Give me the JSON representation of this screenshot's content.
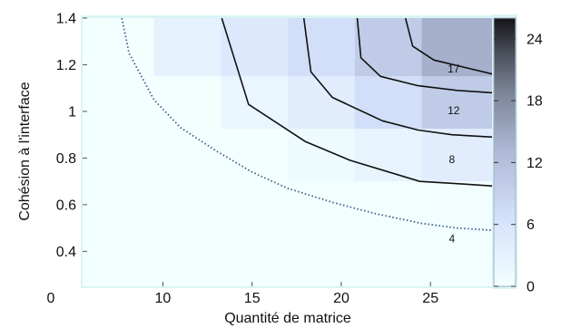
{
  "chart_data": [
    {
      "type": "heatmap",
      "title": "",
      "xlabel": "Quantité de matrice",
      "ylabel": "Cohésion à l'interface",
      "xlim": [
        5.5,
        28.5
      ],
      "ylim": [
        0.25,
        1.4
      ],
      "xticks": [
        10,
        15,
        20,
        25
      ],
      "yticks": [
        0.4,
        0.6,
        0.8,
        1,
        1.2,
        1.4
      ],
      "extra_y_tick_label": "0",
      "grid": false,
      "colormap": "white-lightblue-black",
      "cells": {
        "x_edges": [
          5.5,
          9.5,
          13.25,
          17,
          20.75,
          24.5,
          28.5
        ],
        "y_edges": [
          0.25,
          0.475,
          0.7,
          0.925,
          1.15,
          1.4
        ],
        "values": [
          [
            0,
            0,
            0,
            0,
            0,
            0
          ],
          [
            0,
            0,
            0,
            0,
            0,
            0.5
          ],
          [
            0,
            0,
            0,
            1,
            2.5,
            4
          ],
          [
            0,
            0,
            2,
            4,
            7,
            10
          ],
          [
            0,
            3,
            5,
            7,
            10,
            14
          ]
        ]
      },
      "contours": [
        {
          "level": "4",
          "x": [
            13.3,
            14.8,
            18,
            20.5,
            24.4,
            26.5,
            28.5
          ],
          "y": [
            1.4,
            1.03,
            0.87,
            0.79,
            0.7,
            0.69,
            0.68
          ]
        },
        {
          "level": "8",
          "x": [
            17.9,
            18.3,
            19.5,
            22.3,
            24.3,
            26.2,
            28.5
          ],
          "y": [
            1.4,
            1.17,
            1.06,
            0.96,
            0.92,
            0.9,
            0.89
          ]
        },
        {
          "level": "12",
          "x": [
            20.9,
            21.1,
            22.2,
            24.3,
            26.5,
            28.5
          ],
          "y": [
            1.4,
            1.23,
            1.15,
            1.11,
            1.09,
            1.08
          ]
        },
        {
          "level": "17",
          "x": [
            23.6,
            24.0,
            25.2,
            28.5
          ],
          "y": [
            1.4,
            1.28,
            1.22,
            1.16
          ]
        },
        {
          "level": "",
          "x": [
            7.7,
            8.1,
            9.5,
            11,
            13,
            15,
            17,
            19.5,
            22,
            24.5,
            26.5,
            28.5
          ],
          "y": [
            1.4,
            1.25,
            1.05,
            0.93,
            0.83,
            0.74,
            0.67,
            0.61,
            0.56,
            0.52,
            0.5,
            0.49
          ],
          "dotted": true
        }
      ],
      "contour_labels": [
        {
          "text": "17",
          "x": 26.3,
          "y": 1.18
        },
        {
          "text": "12",
          "x": 26.3,
          "y": 1.0
        },
        {
          "text": "8",
          "x": 26.2,
          "y": 0.79
        },
        {
          "text": "4",
          "x": 26.2,
          "y": 0.45
        }
      ],
      "colorbar": {
        "range": [
          0,
          26
        ],
        "ticks": [
          0,
          6,
          12,
          18,
          24
        ],
        "labels": [
          "0",
          "6",
          "12",
          "18",
          "24"
        ]
      },
      "colors": {
        "background": "#f3ffff",
        "light_blue": "#dce8fb",
        "contour": "#111111",
        "dotted_contour": "#3c5d86",
        "frame_glow": "#d8f7f7"
      }
    }
  ]
}
